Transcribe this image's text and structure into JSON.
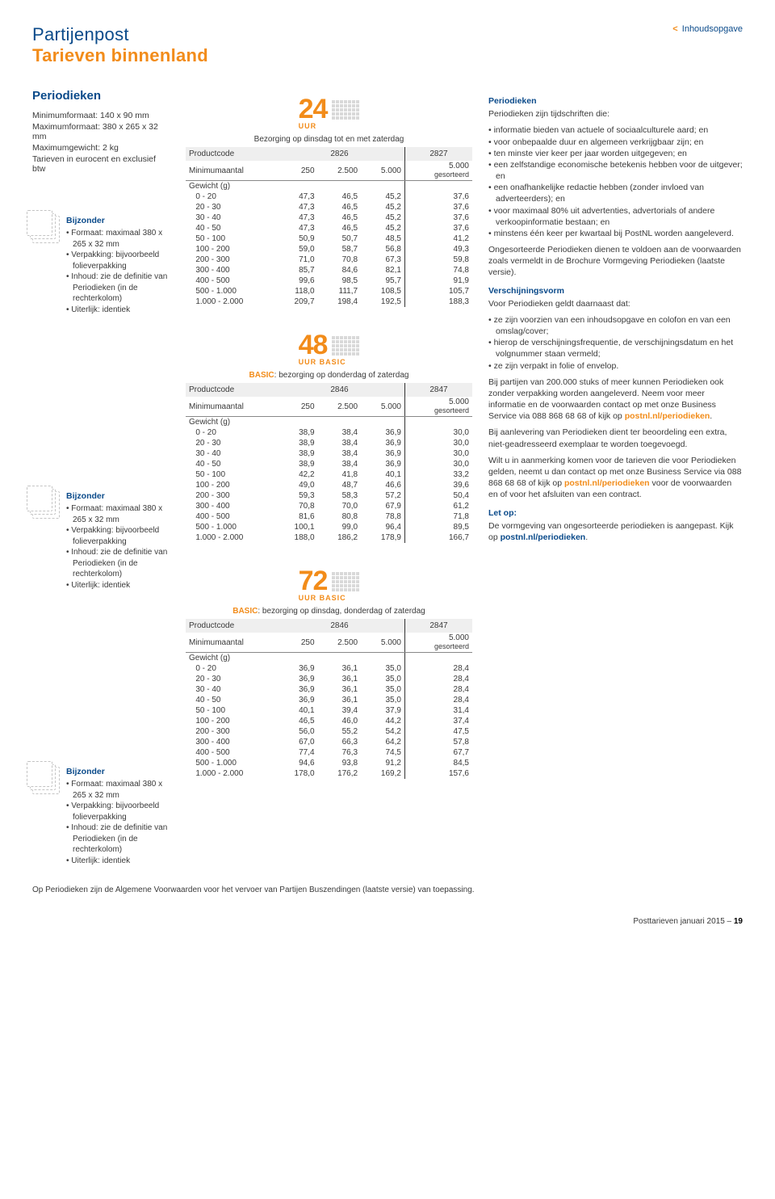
{
  "header": {
    "title1": "Partijenpost",
    "title2": "Tarieven binnenland",
    "toc": "Inhoudsopgave"
  },
  "intro": {
    "heading": "Periodieken",
    "lines": [
      "Minimumformaat: 140 x 90 mm",
      "Maximumformaat: 380 x 265 x 32 mm",
      "Maximumgewicht: 2 kg",
      "Tarieven in eurocent en exclusief btw"
    ]
  },
  "bijzonder": {
    "title": "Bijzonder",
    "items": [
      "Formaat: maximaal 380 x 265 x 32 mm",
      "Verpakking: bijvoorbeeld folieverpakking",
      "Inhoud: zie de definitie van Periodieken (in de rechterkolom)",
      "Uiterlijk: identiek"
    ]
  },
  "labels": {
    "productcode": "Productcode",
    "minimum": "Minimumaantal",
    "gewicht": "Gewicht (g)",
    "gesorteerd": "gesorteerd",
    "uur": "UUR",
    "uurbasic": "UUR BASIC",
    "cols": [
      "250",
      "2.500",
      "5.000",
      "5.000"
    ]
  },
  "tables": [
    {
      "logo": "24",
      "logosub": "UUR",
      "delivery": "Bezorging op dinsdag tot en met zaterdag",
      "basic_prefix": "",
      "codes": [
        "2826",
        "2827"
      ],
      "rows": [
        {
          "g": "0 - 20",
          "v": [
            "47,3",
            "46,5",
            "45,2",
            "37,6"
          ]
        },
        {
          "g": "20 - 30",
          "v": [
            "47,3",
            "46,5",
            "45,2",
            "37,6"
          ]
        },
        {
          "g": "30 - 40",
          "v": [
            "47,3",
            "46,5",
            "45,2",
            "37,6"
          ]
        },
        {
          "g": "40 - 50",
          "v": [
            "47,3",
            "46,5",
            "45,2",
            "37,6"
          ]
        },
        {
          "g": "50 - 100",
          "v": [
            "50,9",
            "50,7",
            "48,5",
            "41,2"
          ]
        },
        {
          "g": "100 - 200",
          "v": [
            "59,0",
            "58,7",
            "56,8",
            "49,3"
          ]
        },
        {
          "g": "200 - 300",
          "v": [
            "71,0",
            "70,8",
            "67,3",
            "59,8"
          ]
        },
        {
          "g": "300 - 400",
          "v": [
            "85,7",
            "84,6",
            "82,1",
            "74,8"
          ]
        },
        {
          "g": "400 - 500",
          "v": [
            "99,6",
            "98,5",
            "95,7",
            "91,9"
          ]
        },
        {
          "g": "500 - 1.000",
          "v": [
            "118,0",
            "111,7",
            "108,5",
            "105,7"
          ]
        },
        {
          "g": "1.000 - 2.000",
          "v": [
            "209,7",
            "198,4",
            "192,5",
            "188,3"
          ]
        }
      ]
    },
    {
      "logo": "48",
      "logosub": "UUR BASIC",
      "basic_prefix": "BASIC",
      "delivery": ": bezorging op donderdag of zaterdag",
      "codes": [
        "2846",
        "2847"
      ],
      "rows": [
        {
          "g": "0 - 20",
          "v": [
            "38,9",
            "38,4",
            "36,9",
            "30,0"
          ]
        },
        {
          "g": "20 - 30",
          "v": [
            "38,9",
            "38,4",
            "36,9",
            "30,0"
          ]
        },
        {
          "g": "30 - 40",
          "v": [
            "38,9",
            "38,4",
            "36,9",
            "30,0"
          ]
        },
        {
          "g": "40 - 50",
          "v": [
            "38,9",
            "38,4",
            "36,9",
            "30,0"
          ]
        },
        {
          "g": "50 - 100",
          "v": [
            "42,2",
            "41,8",
            "40,1",
            "33,2"
          ]
        },
        {
          "g": "100 - 200",
          "v": [
            "49,0",
            "48,7",
            "46,6",
            "39,6"
          ]
        },
        {
          "g": "200 - 300",
          "v": [
            "59,3",
            "58,3",
            "57,2",
            "50,4"
          ]
        },
        {
          "g": "300 - 400",
          "v": [
            "70,8",
            "70,0",
            "67,9",
            "61,2"
          ]
        },
        {
          "g": "400 - 500",
          "v": [
            "81,6",
            "80,8",
            "78,8",
            "71,8"
          ]
        },
        {
          "g": "500 - 1.000",
          "v": [
            "100,1",
            "99,0",
            "96,4",
            "89,5"
          ]
        },
        {
          "g": "1.000 - 2.000",
          "v": [
            "188,0",
            "186,2",
            "178,9",
            "166,7"
          ]
        }
      ]
    },
    {
      "logo": "72",
      "logosub": "UUR BASIC",
      "basic_prefix": "BASIC",
      "delivery": ": bezorging op dinsdag, donderdag of zaterdag",
      "codes": [
        "2846",
        "2847"
      ],
      "rows": [
        {
          "g": "0 - 20",
          "v": [
            "36,9",
            "36,1",
            "35,0",
            "28,4"
          ]
        },
        {
          "g": "20 - 30",
          "v": [
            "36,9",
            "36,1",
            "35,0",
            "28,4"
          ]
        },
        {
          "g": "30 - 40",
          "v": [
            "36,9",
            "36,1",
            "35,0",
            "28,4"
          ]
        },
        {
          "g": "40 - 50",
          "v": [
            "36,9",
            "36,1",
            "35,0",
            "28,4"
          ]
        },
        {
          "g": "50 - 100",
          "v": [
            "40,1",
            "39,4",
            "37,9",
            "31,4"
          ]
        },
        {
          "g": "100 - 200",
          "v": [
            "46,5",
            "46,0",
            "44,2",
            "37,4"
          ]
        },
        {
          "g": "200 - 300",
          "v": [
            "56,0",
            "55,2",
            "54,2",
            "47,5"
          ]
        },
        {
          "g": "300 - 400",
          "v": [
            "67,0",
            "66,3",
            "64,2",
            "57,8"
          ]
        },
        {
          "g": "400 - 500",
          "v": [
            "77,4",
            "76,3",
            "74,5",
            "67,7"
          ]
        },
        {
          "g": "500 - 1.000",
          "v": [
            "94,6",
            "93,8",
            "91,2",
            "84,5"
          ]
        },
        {
          "g": "1.000 - 2.000",
          "v": [
            "178,0",
            "176,2",
            "169,2",
            "157,6"
          ]
        }
      ]
    }
  ],
  "right": {
    "h1": "Periodieken",
    "intro": "Periodieken zijn tijdschriften die:",
    "list1": [
      "informatie bieden van actuele of sociaalculturele aard; en",
      "voor onbepaalde duur en algemeen verkrijgbaar zijn; en",
      "ten minste vier keer per jaar worden uitgegeven; en",
      "een zelfstandige economische betekenis hebben voor de uitgever; en",
      "een onafhankelijke redactie hebben (zonder invloed van adverteerders); en",
      "voor maximaal 80% uit advertenties, advertorials of andere verkoopinformatie bestaan; en",
      "minstens één keer per kwartaal bij PostNL worden aangeleverd."
    ],
    "p1": "Ongesorteerde Periodieken dienen te voldoen aan de voorwaarden zoals vermeldt in de Brochure Vormgeving Periodieken (laatste versie).",
    "h2": "Verschijningsvorm",
    "p2": "Voor Periodieken geldt daarnaast dat:",
    "list2": [
      "ze zijn voorzien van een inhoudsopgave en colofon en van een omslag/cover;",
      "hierop de verschijningsfrequentie, de verschijningsdatum en het volgnummer staan vermeld;",
      "ze zijn verpakt in folie of envelop."
    ],
    "p3a": "Bij partijen van 200.000 stuks of meer kunnen Periodieken ook zonder verpakking worden aangeleverd. Neem voor meer informatie en de voorwaarden contact op met onze Business Service via 088 868 68 68 of kijk op ",
    "link1": "postnl.nl/periodieken",
    "p3b": ".",
    "p4": "Bij aanlevering van Periodieken dient ter beoordeling een extra, niet-geadresseerd exemplaar te worden toegevoegd.",
    "p5a": "Wilt u in aanmerking komen voor de tarieven die voor Periodieken gelden, neemt u dan contact op met onze Business Service via 088 868 68 68 of kijk op ",
    "link2": "postnl.nl/periodieken",
    "p5b": " voor de voorwaarden en of voor het afsluiten van een contract.",
    "h3": "Let op:",
    "p6a": "De vormgeving van ongesorteerde periodieken is aangepast. Kijk op ",
    "link3": "postnl.nl/periodieken",
    "p6b": "."
  },
  "footnote": "Op Periodieken zijn de Algemene Voorwaarden voor het vervoer van Partijen Buszendingen (laatste versie) van toepassing.",
  "pagefoot": {
    "a": "Posttarieven januari 2015 – ",
    "b": "19"
  }
}
